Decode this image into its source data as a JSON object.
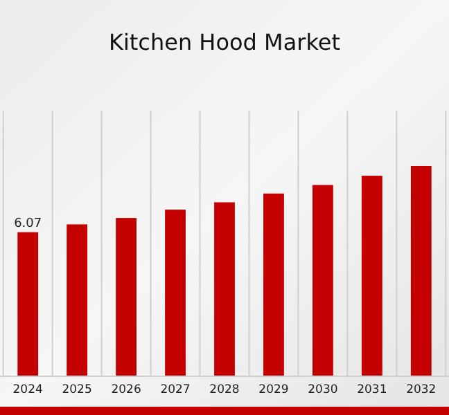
{
  "chart_data": {
    "type": "bar",
    "title": "Kitchen Hood Market",
    "categories": [
      "2024",
      "2025",
      "2026",
      "2027",
      "2028",
      "2029",
      "2030",
      "2031",
      "2032"
    ],
    "values": [
      6.07,
      6.4,
      6.67,
      7.02,
      7.33,
      7.7,
      8.06,
      8.45,
      8.86
    ],
    "value_labels": [
      "6.07",
      null,
      null,
      null,
      null,
      null,
      null,
      null,
      null
    ],
    "color": "#c40000",
    "grid": "x"
  }
}
